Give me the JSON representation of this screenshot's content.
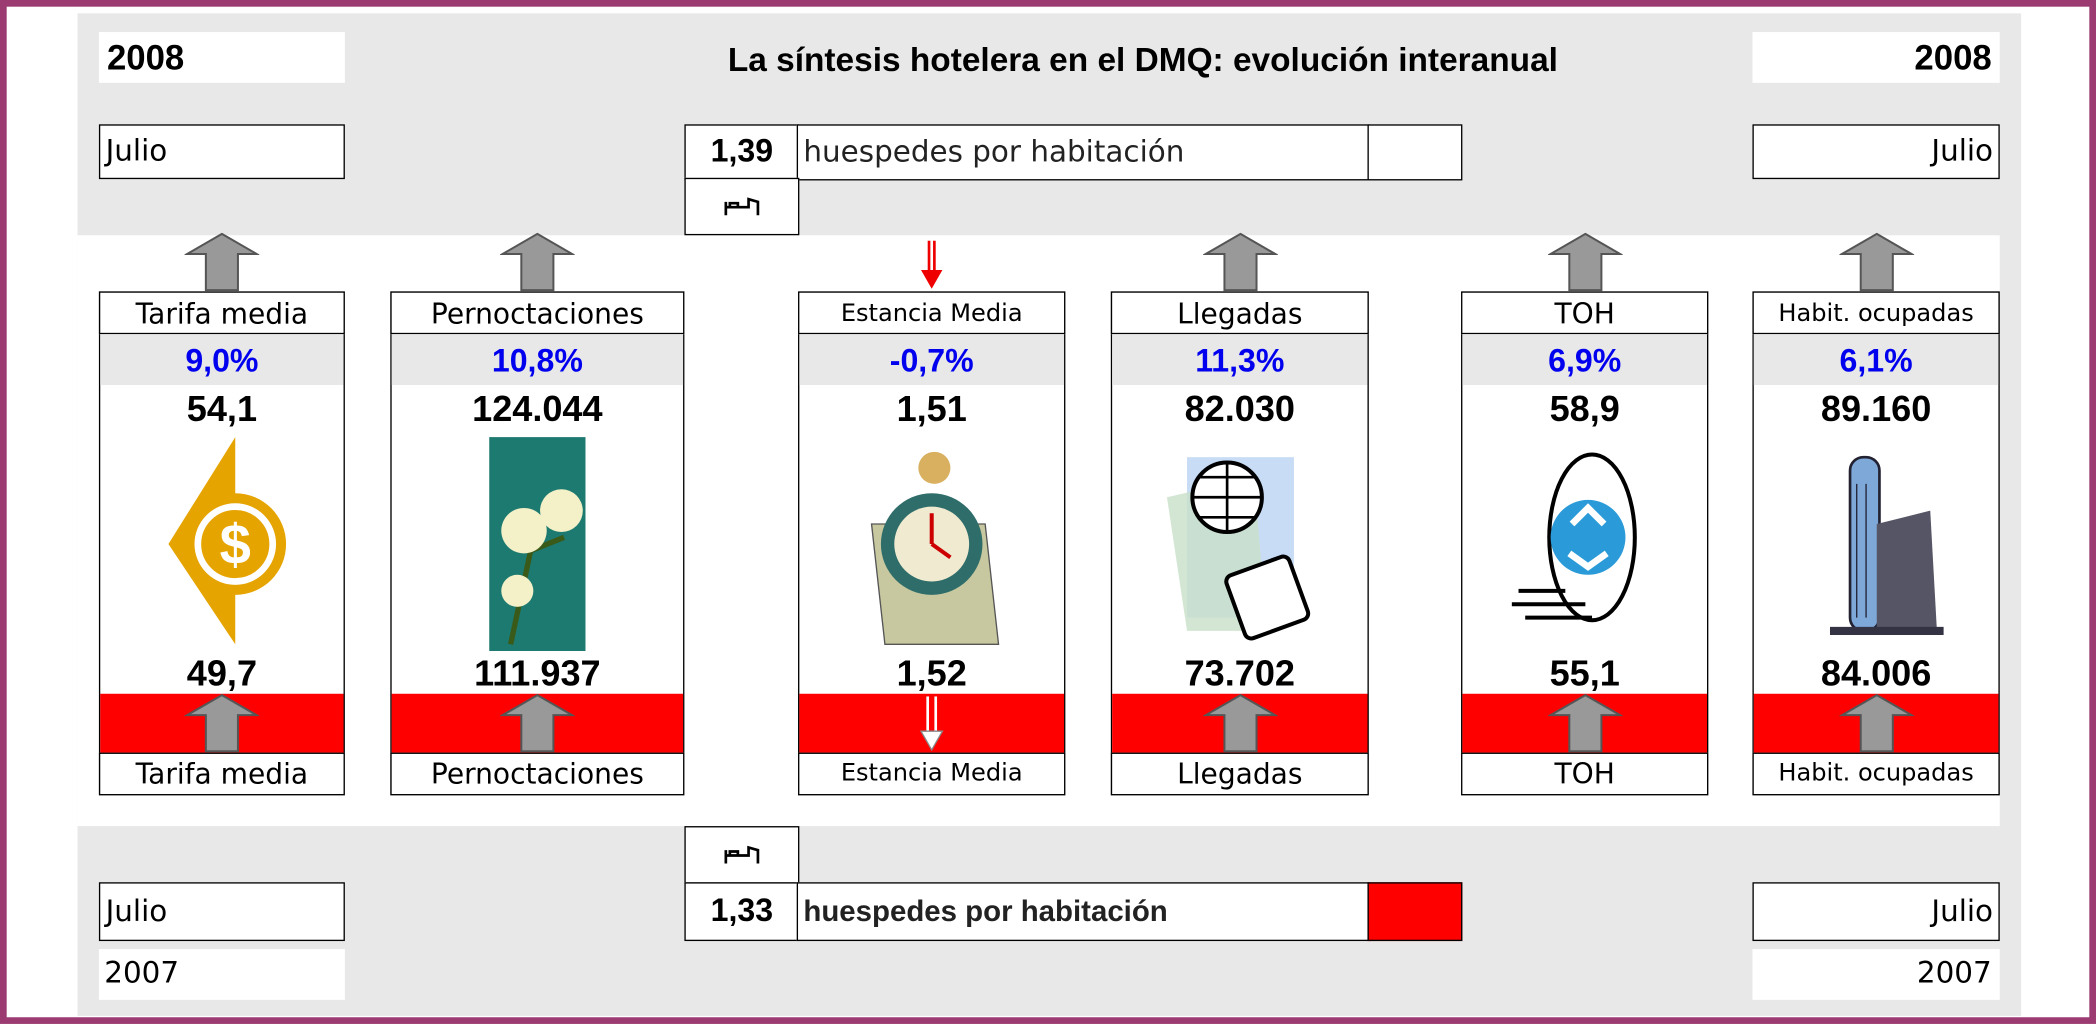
{
  "header": {
    "year_left": "2008",
    "title": "La síntesis  hotelera en el DMQ: evolución interanual",
    "year_right": "2008"
  },
  "top": {
    "month_left": "Julio",
    "guests_value": "1,39",
    "guests_label": "huespedes  por habitación",
    "month_right": "Julio"
  },
  "indicators": [
    {
      "name_top": "Tarifa media",
      "change": "9,0%",
      "value_2008": "54,1",
      "value_2007": "49,7",
      "name_bottom": "Tarifa media"
    },
    {
      "name_top": "Pernoctaciones",
      "change": "10,8%",
      "value_2008": "124.044",
      "value_2007": "111.937",
      "name_bottom": "Pernoctaciones"
    },
    {
      "name_top": "Estancia Media",
      "change": "-0,7%",
      "value_2008": "1,51",
      "value_2007": "1,52",
      "name_bottom": "Estancia Media"
    },
    {
      "name_top": "Llegadas",
      "change": "11,3%",
      "value_2008": "82.030",
      "value_2007": "73.702",
      "name_bottom": "Llegadas"
    },
    {
      "name_top": "TOH",
      "change": "6,9%",
      "value_2008": "58,9",
      "value_2007": "55,1",
      "name_bottom": "TOH"
    },
    {
      "name_top": "Habit. ocupadas",
      "change": "6,1%",
      "value_2008": "89.160",
      "value_2007": "84.006",
      "name_bottom": "Habit. ocupadas"
    }
  ],
  "bottom": {
    "month_left": "Julio",
    "guests_value": "1,33",
    "guests_label": "huespedes  por habitación",
    "month_right": "Julio",
    "year_left": "2007",
    "year_right": "2007"
  }
}
